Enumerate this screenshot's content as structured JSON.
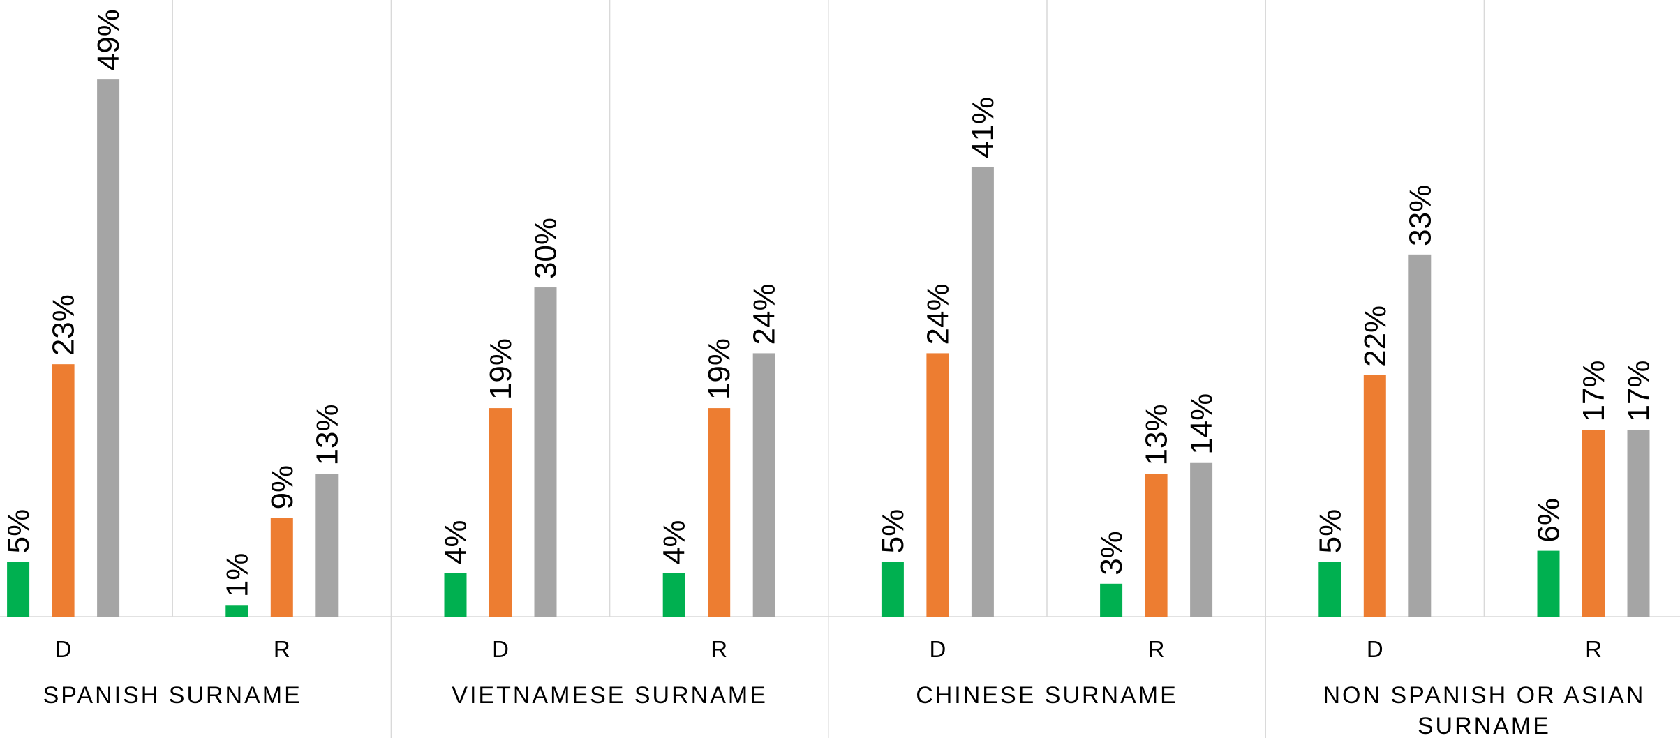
{
  "chart_data": {
    "type": "bar",
    "categories": [
      "D",
      "R",
      "D",
      "R",
      "D",
      "R",
      "D",
      "R"
    ],
    "groups": [
      "SPANISH SURNAME",
      "VIETNAMESE SURNAME",
      "CHINESE SURNAME",
      "NON SPANISH OR ASIAN SURNAME"
    ],
    "series": [
      {
        "color": "#00b050",
        "values": [
          5,
          1,
          4,
          4,
          5,
          3,
          5,
          6
        ],
        "value_labels": [
          "5%",
          "1%",
          "4%",
          "4%",
          "5%",
          "3%",
          "5%",
          "6%"
        ]
      },
      {
        "color": "#ed7d31",
        "values": [
          23,
          9,
          19,
          19,
          24,
          13,
          22,
          17
        ],
        "value_labels": [
          "23%",
          "9%",
          "19%",
          "19%",
          "24%",
          "13%",
          "22%",
          "17%"
        ]
      },
      {
        "color": "#a5a5a5",
        "values": [
          49,
          13,
          30,
          24,
          41,
          14,
          33,
          17
        ],
        "value_labels": [
          "49%",
          "13%",
          "30%",
          "24%",
          "41%",
          "14%",
          "33%",
          "17%"
        ]
      }
    ],
    "ylim": [
      0,
      56
    ]
  }
}
